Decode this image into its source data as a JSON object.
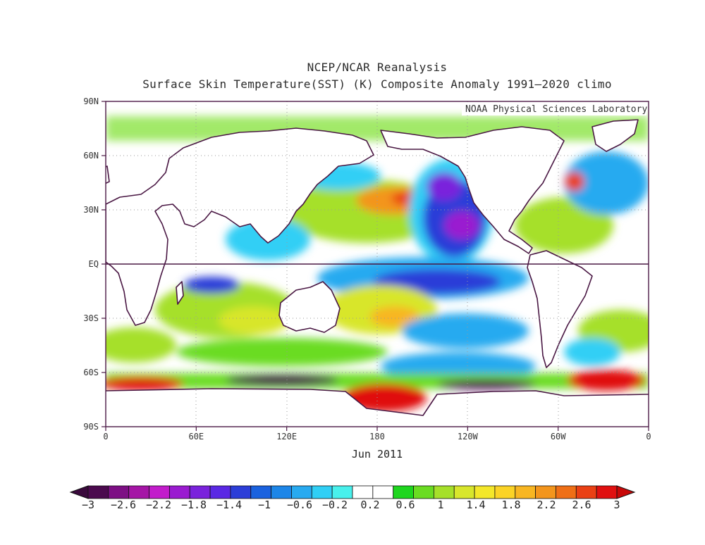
{
  "title": "NCEP/NCAR Reanalysis",
  "subtitle": "Surface Skin Temperature(SST) (K) Composite Anomaly 1991–2020 climo",
  "watermark": "NOAA Physical Sciences Laboratory",
  "period_label": "Jun 2011",
  "lat_ticks": [
    "90N",
    "60N",
    "30N",
    "EQ",
    "30S",
    "60S",
    "90S"
  ],
  "lon_ticks": [
    "0",
    "60E",
    "120E",
    "180",
    "120W",
    "60W",
    "0"
  ],
  "colorbar": {
    "labels": [
      "−3",
      "−2.6",
      "−2.2",
      "−1.8",
      "−1.4",
      "−1",
      "−0.6",
      "−0.2",
      "0.2",
      "0.6",
      "1",
      "1.4",
      "1.8",
      "2.2",
      "2.6",
      "3"
    ],
    "colors": [
      "#4b0a4e",
      "#7d0f84",
      "#a515a6",
      "#c21ccb",
      "#9a1bd0",
      "#7a22dc",
      "#5a28e4",
      "#2c3ed8",
      "#1a62df",
      "#1d86e8",
      "#28aaf0",
      "#30cff5",
      "#48f0ec",
      "#ffffff",
      "#ffffff",
      "#1ed61e",
      "#6adc22",
      "#a6e02a",
      "#d8e62c",
      "#f4e72a",
      "#fbd326",
      "#f8b622",
      "#f3951c",
      "#ef6f16",
      "#ea4014",
      "#e01010"
    ]
  },
  "map_colors": {
    "ocean_base": "#ffffff",
    "land_outline": "#4a1844",
    "warm_strong": "#e01010",
    "warm": "#a6e02a",
    "cool": "#30cff5",
    "cold": "#2c3ed8"
  }
}
